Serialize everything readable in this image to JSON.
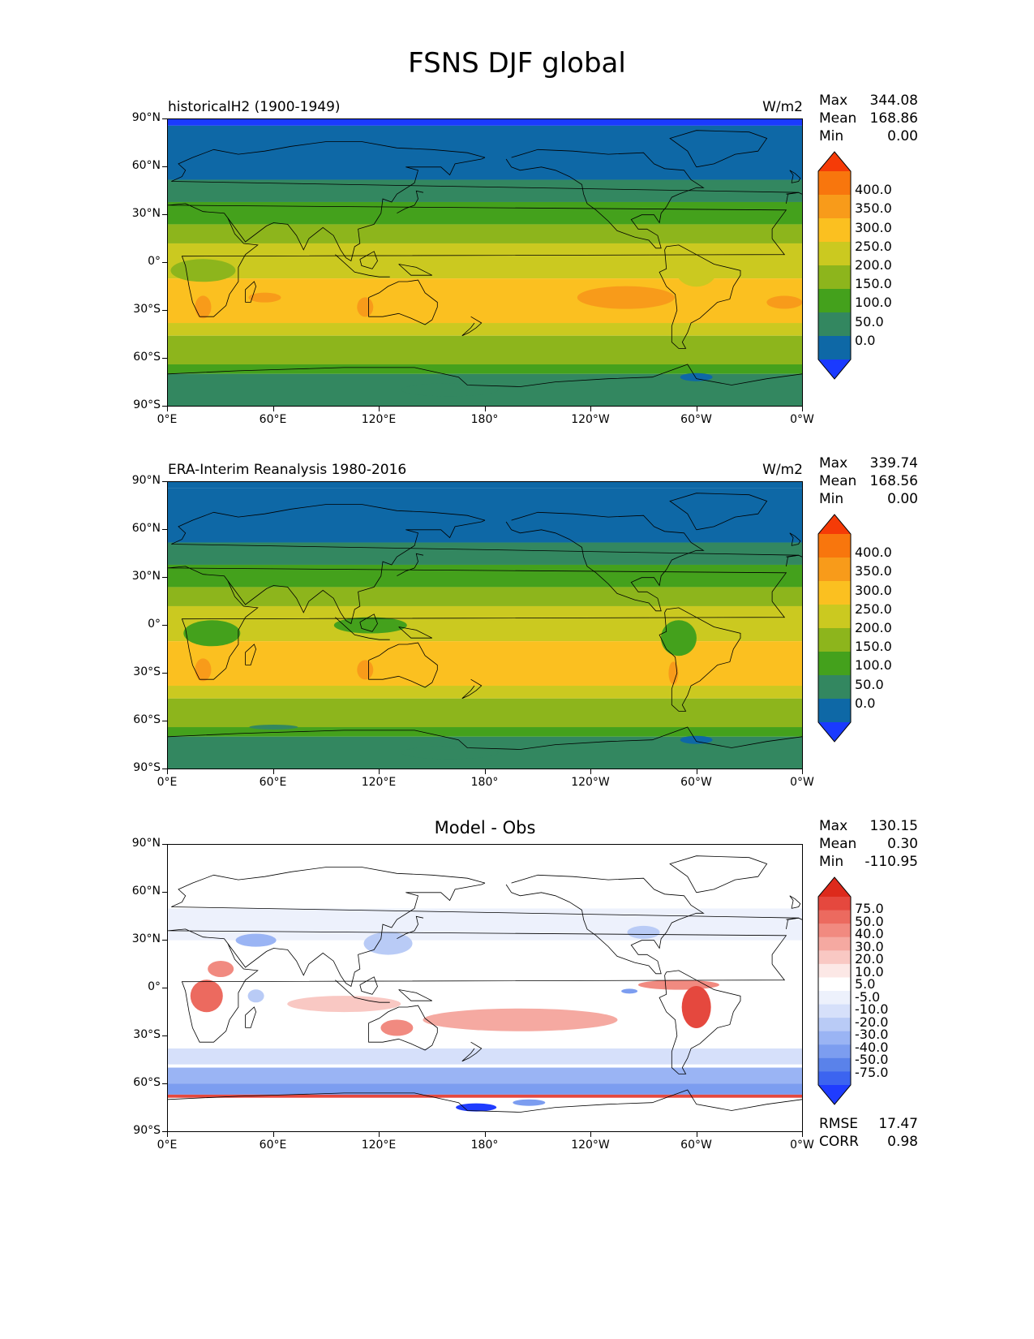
{
  "title": "FSNS DJF global",
  "colors": {
    "fsns_levels": [
      "#1a3aff",
      "#0e68a6",
      "#338760",
      "#44a11c",
      "#8db51c",
      "#cbc920",
      "#fbc020",
      "#f89b1a",
      "#f8760d",
      "#f53b07"
    ],
    "diff_levels": [
      "#1f3cff",
      "#3c64f0",
      "#5a82ea",
      "#7c9df0",
      "#9ab4f4",
      "#b9cbf6",
      "#d6e0fa",
      "#edf1fc",
      "#ffffff",
      "#fce8e6",
      "#f9c8c3",
      "#f5a9a1",
      "#f18a80",
      "#ec6a5f",
      "#e5483e",
      "#dd2a1c"
    ],
    "land": "#000000"
  },
  "axes": {
    "lat_labels": [
      "90°N",
      "60°N",
      "30°N",
      "0°",
      "30°S",
      "60°S",
      "90°S"
    ],
    "lon_labels": [
      "0°E",
      "60°E",
      "120°E",
      "180°",
      "120°W",
      "60°W",
      "0°W"
    ]
  },
  "panels": [
    {
      "id": "model",
      "title_left": "historicalH2 (1900-1949)",
      "title_right": "W/m2",
      "title_center": "",
      "stats": [
        {
          "label": "Max",
          "value": "344.08"
        },
        {
          "label": "Mean",
          "value": "168.86"
        },
        {
          "label": "Min",
          "value": "0.00"
        }
      ],
      "colorbar_labels": [
        "400.0",
        "350.0",
        "300.0",
        "250.0",
        "200.0",
        "150.0",
        "100.0",
        "50.0",
        "0.0"
      ]
    },
    {
      "id": "obs",
      "title_left": "ERA-Interim Reanalysis 1980-2016",
      "title_right": "W/m2",
      "title_center": "",
      "stats": [
        {
          "label": "Max",
          "value": "339.74"
        },
        {
          "label": "Mean",
          "value": "168.56"
        },
        {
          "label": "Min",
          "value": "0.00"
        }
      ],
      "colorbar_labels": [
        "400.0",
        "350.0",
        "300.0",
        "250.0",
        "200.0",
        "150.0",
        "100.0",
        "50.0",
        "0.0"
      ]
    },
    {
      "id": "diff",
      "title_left": "",
      "title_right": "",
      "title_center": "Model - Obs",
      "stats": [
        {
          "label": "Max",
          "value": "130.15"
        },
        {
          "label": "Mean",
          "value": "0.30"
        },
        {
          "label": "Min",
          "value": "-110.95"
        }
      ],
      "colorbar_labels": [
        "75.0",
        "50.0",
        "40.0",
        "30.0",
        "20.0",
        "10.0",
        "5.0",
        "-5.0",
        "-10.0",
        "-20.0",
        "-30.0",
        "-40.0",
        "-50.0",
        "-75.0"
      ],
      "bottom_stats": [
        {
          "label": "RMSE",
          "value": "17.47"
        },
        {
          "label": "CORR",
          "value": "0.98"
        }
      ]
    }
  ]
}
